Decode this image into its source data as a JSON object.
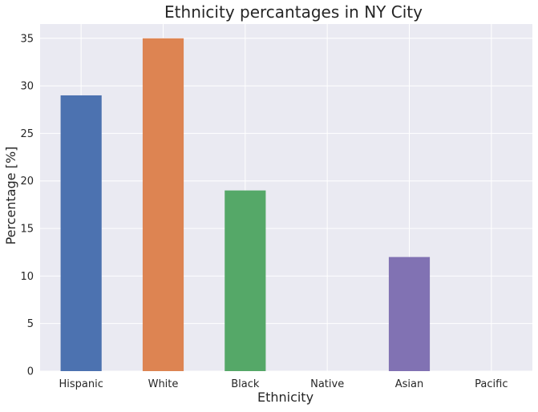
{
  "chart_data": {
    "type": "bar",
    "title": "Ethnicity percantages in NY City",
    "xlabel": "Ethnicity",
    "ylabel": "Percentage [%]",
    "categories": [
      "Hispanic",
      "White",
      "Black",
      "Native",
      "Asian",
      "Pacific"
    ],
    "values": [
      29,
      35,
      19,
      0,
      12,
      0
    ],
    "bar_colors": [
      "#4c72b0",
      "#dd8452",
      "#55a868",
      "#c44e52",
      "#8172b3",
      "#937860"
    ],
    "ylim": [
      0,
      36.5
    ],
    "yticks": [
      "0",
      "5",
      "10",
      "15",
      "20",
      "25",
      "30",
      "35"
    ],
    "grid": true,
    "background_color": "#eaeaf2",
    "grid_color": "#ffffff"
  }
}
